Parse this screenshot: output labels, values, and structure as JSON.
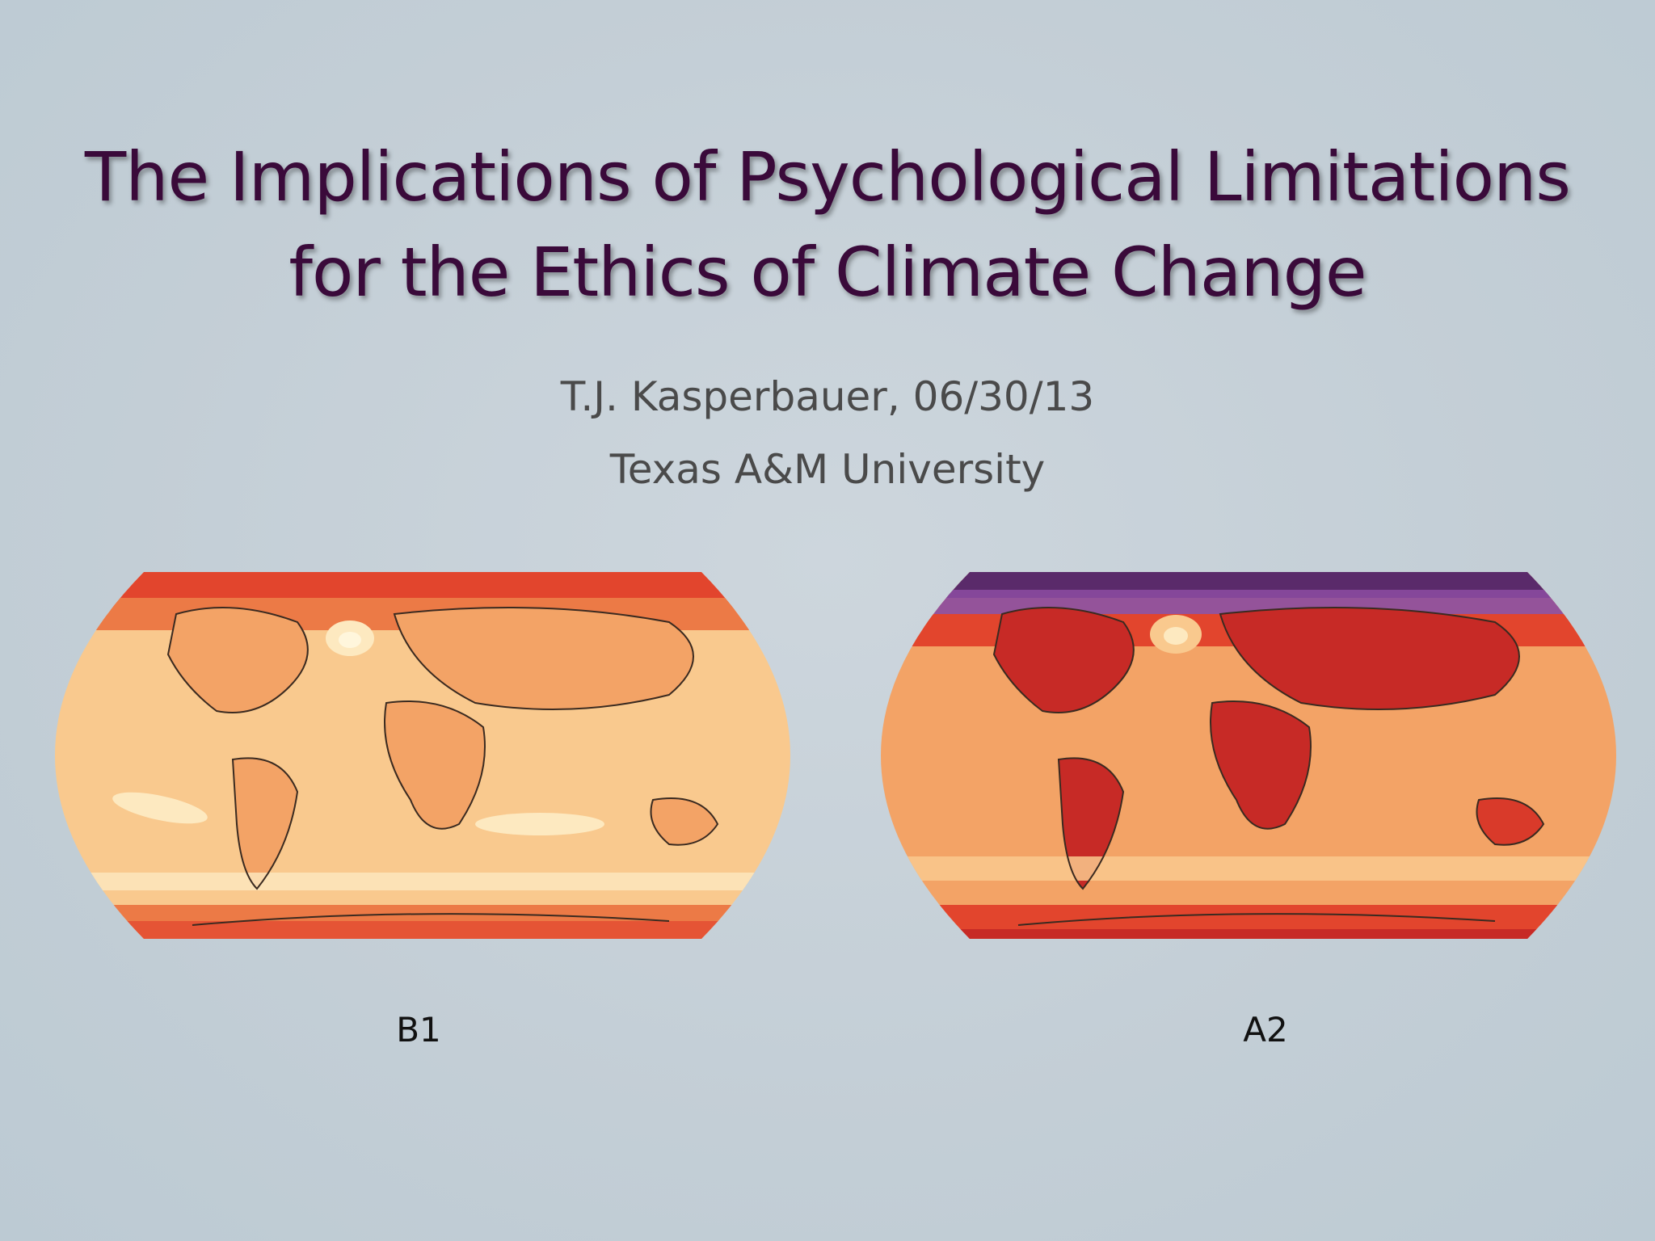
{
  "slide": {
    "title_line1": "The Implications of Psychological Limitations",
    "title_line2": "for the Ethics of Climate Change",
    "author_line": "T.J. Kasperbauer, 06/30/13",
    "institution": "Texas A&M University"
  },
  "maps": [
    {
      "label": "B1",
      "palette": [
        "#fde9c0",
        "#f9c98e",
        "#f3a366",
        "#ec7a46",
        "#e2452d"
      ]
    },
    {
      "label": "A2",
      "palette": [
        "#f5a366",
        "#ec7a46",
        "#e2452d",
        "#c72a26",
        "#7a3a8a"
      ]
    }
  ],
  "colors": {
    "title": "#3a0a3a",
    "background": "#c3ced6",
    "text": "#4a4a4a"
  }
}
